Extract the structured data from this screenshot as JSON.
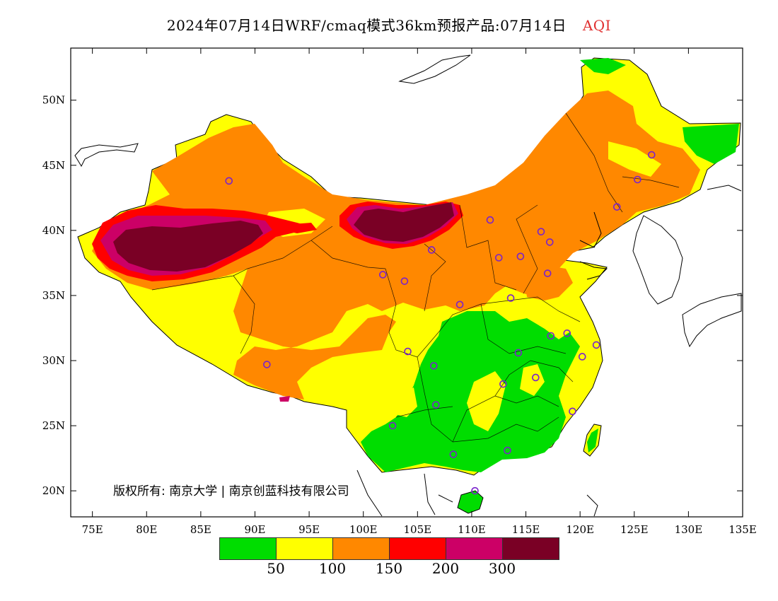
{
  "title": {
    "main": "2024年07月14日WRF/cmaq模式36km预报产品:07月14日",
    "variable": "AQI"
  },
  "copyright": "版权所有: 南京大学 | 南京创蓝科技有限公司",
  "axes": {
    "lon_labels": [
      "75E",
      "80E",
      "85E",
      "90E",
      "95E",
      "100E",
      "105E",
      "110E",
      "115E",
      "120E",
      "125E",
      "130E",
      "135E"
    ],
    "lat_labels": [
      "20N",
      "25N",
      "30N",
      "35N",
      "40N",
      "45N",
      "50N"
    ]
  },
  "legend": {
    "colors": [
      "#00dd00",
      "#ffff00",
      "#ff8800",
      "#ff0000",
      "#cc0066",
      "#7a0025"
    ],
    "thresholds": [
      "50",
      "100",
      "150",
      "200",
      "300"
    ]
  },
  "map_data": {
    "lon_range": [
      73,
      135
    ],
    "lat_range": [
      18,
      54
    ],
    "land_color": "#ffffff",
    "border_color": "#000000",
    "city_marker_color": "#7a22cc",
    "cities": [
      [
        87.6,
        43.8
      ],
      [
        91.1,
        29.7
      ],
      [
        101.8,
        36.6
      ],
      [
        103.8,
        36.1
      ],
      [
        106.3,
        38.5
      ],
      [
        111.7,
        40.8
      ],
      [
        112.5,
        37.9
      ],
      [
        114.5,
        38.0
      ],
      [
        116.4,
        39.9
      ],
      [
        117.2,
        39.1
      ],
      [
        117.0,
        36.7
      ],
      [
        113.6,
        34.8
      ],
      [
        108.9,
        34.3
      ],
      [
        104.1,
        30.7
      ],
      [
        106.5,
        29.6
      ],
      [
        106.7,
        26.6
      ],
      [
        102.7,
        25.0
      ],
      [
        108.3,
        22.8
      ],
      [
        113.3,
        23.1
      ],
      [
        110.3,
        20.0
      ],
      [
        112.9,
        28.2
      ],
      [
        115.9,
        28.7
      ],
      [
        114.3,
        30.6
      ],
      [
        117.3,
        31.9
      ],
      [
        118.8,
        32.1
      ],
      [
        121.5,
        31.2
      ],
      [
        120.2,
        30.3
      ],
      [
        119.3,
        26.1
      ],
      [
        123.4,
        41.8
      ],
      [
        125.3,
        43.9
      ],
      [
        126.6,
        45.8
      ]
    ]
  }
}
